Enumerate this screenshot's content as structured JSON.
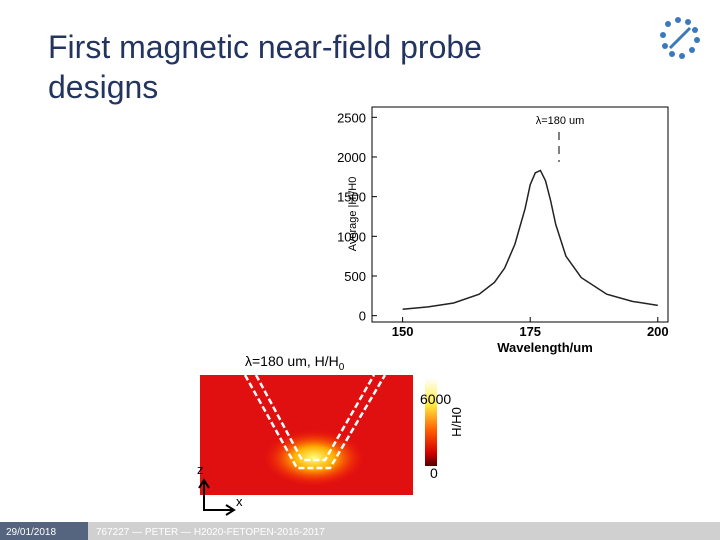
{
  "slide": {
    "title_line1": "First magnetic near-field probe",
    "title_line2": "designs",
    "footer_date": "29/01/2018",
    "footer_text": "767227 — PETER — H2020-FETOPEN-2016-2017"
  },
  "chart_data": {
    "type": "line",
    "x_label": "Wavelength/um",
    "y_label": "Average |H|/H0",
    "annotation": "λ=180 um",
    "x": [
      150,
      155,
      160,
      165,
      168,
      170,
      172,
      174,
      175,
      176,
      177,
      178,
      179,
      180,
      182,
      185,
      190,
      195,
      200
    ],
    "series": [
      {
        "name": "Average |H|/H0",
        "color": "#222222",
        "values": [
          80,
          110,
          160,
          270,
          420,
          600,
          900,
          1350,
          1650,
          1800,
          1830,
          1700,
          1450,
          1150,
          750,
          480,
          270,
          180,
          130
        ]
      }
    ],
    "xlim": [
      144,
      202
    ],
    "xticks": [
      150,
      175,
      200
    ],
    "ylim": [
      -80,
      2630
    ],
    "yticks": [
      0,
      500,
      1000,
      1500,
      2000,
      2500
    ]
  },
  "field_map": {
    "heading": "λ=180 um, H/H",
    "heading_subscript": "0",
    "colorbar_label": "H/H0",
    "colorbar_max": 6000,
    "colorbar_min": 0,
    "axis_z": "z",
    "axis_x": "x"
  }
}
